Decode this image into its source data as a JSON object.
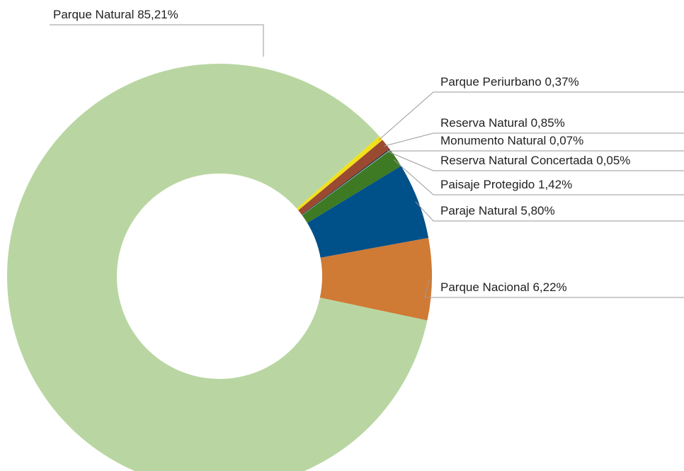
{
  "chart_data": {
    "type": "donut",
    "categories": [
      "Parque Natural",
      "Parque Periurbano",
      "Reserva Natural",
      "Monumento Natural",
      "Reserva Natural Concertada",
      "Paisaje Protegido",
      "Paraje Natural",
      "Parque Nacional"
    ],
    "values": [
      85.21,
      0.37,
      0.85,
      0.07,
      0.05,
      1.42,
      5.8,
      6.22
    ],
    "value_labels": [
      "85,21%",
      "0,37%",
      "0,85%",
      "0,07%",
      "0,05%",
      "1,42%",
      "5,80%",
      "6,22%"
    ],
    "colors": [
      "#b9d6a2",
      "#f2e01a",
      "#9b4a32",
      "#1a1a1a",
      "#7fc5d9",
      "#3e7a24",
      "#00508a",
      "#cf7a35"
    ]
  }
}
